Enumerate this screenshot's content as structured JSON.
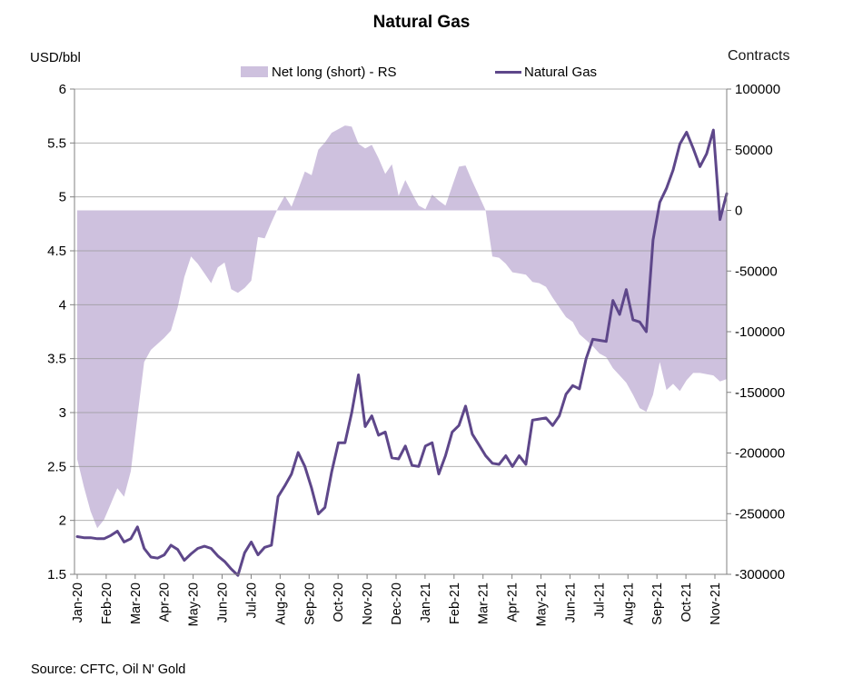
{
  "title": "Natural Gas",
  "left_axis": {
    "label": "USD/bbl",
    "ticks": [
      "6",
      "5.5",
      "5",
      "4.5",
      "4",
      "3.5",
      "3",
      "2.5",
      "2",
      "1.5"
    ]
  },
  "right_axis": {
    "label": "Contracts",
    "ticks": [
      "100000",
      "50000",
      "0",
      "-50000",
      "-100000",
      "-150000",
      "-200000",
      "-250000",
      "-300000"
    ]
  },
  "legend": [
    {
      "label": "Net long (short) - RS",
      "type": "area",
      "color": "#cec1de"
    },
    {
      "label": "Natural Gas",
      "type": "line",
      "color": "#5e478a"
    }
  ],
  "source": "Source: CFTC, Oil N' Gold",
  "colors": {
    "area": "#cec1de",
    "line": "#5e478a",
    "grid": "#999999",
    "axis": "#808080",
    "text": "#000000"
  },
  "chart_data": {
    "type": "line",
    "title": "Natural Gas",
    "xlabel": "",
    "ylabel_left": "USD/bbl",
    "ylabel_right": "Contracts",
    "left_range": [
      1.5,
      6
    ],
    "right_range": [
      -300000,
      100000
    ],
    "grid": "horizontal",
    "legend_position": "top",
    "x_tick_labels": [
      "Jan-20",
      "Feb-20",
      "Mar-20",
      "Apr-20",
      "May-20",
      "Jun-20",
      "Jul-20",
      "Aug-20",
      "Sep-20",
      "Oct-20",
      "Nov-20",
      "Dec-20",
      "Jan-21",
      "Feb-21",
      "Mar-21",
      "Apr-21",
      "May-21",
      "Jun-21",
      "Jul-21",
      "Aug-21",
      "Sep-21",
      "Oct-21",
      "Nov-21"
    ],
    "sampling": "weekly",
    "series": [
      {
        "name": "Net long (short) - RS",
        "style": "area",
        "axis": "right",
        "color": "#cec1de",
        "values": [
          -205000,
          -228000,
          -248000,
          -262000,
          -255000,
          -242000,
          -229000,
          -236000,
          -215000,
          -170000,
          -125000,
          -115000,
          -110000,
          -105000,
          -99000,
          -80000,
          -55000,
          -38000,
          -44000,
          -52000,
          -60000,
          -47000,
          -43000,
          -65000,
          -68000,
          -64000,
          -58000,
          -22000,
          -23000,
          -10000,
          2000,
          12000,
          3000,
          17000,
          32000,
          29000,
          50000,
          56000,
          64000,
          67000,
          70000,
          69000,
          55000,
          51000,
          54000,
          43000,
          30000,
          38000,
          12000,
          25000,
          14000,
          4000,
          1000,
          13000,
          8000,
          4000,
          20000,
          36000,
          37000,
          24000,
          12000,
          0,
          -38000,
          -39000,
          -44000,
          -51000,
          -52000,
          -53000,
          -59000,
          -60000,
          -63000,
          -72000,
          -80000,
          -88000,
          -92000,
          -102000,
          -107000,
          -112000,
          -118000,
          -121000,
          -130000,
          -136000,
          -142000,
          -152000,
          -163000,
          -166000,
          -152000,
          -125000,
          -148000,
          -143000,
          -149000,
          -140000,
          -134000,
          -134000,
          -135000,
          -136000,
          -141000,
          -139000
        ]
      },
      {
        "name": "Natural Gas",
        "style": "line",
        "axis": "left",
        "color": "#5e478a",
        "values": [
          1.85,
          1.84,
          1.84,
          1.83,
          1.83,
          1.86,
          1.9,
          1.8,
          1.83,
          1.94,
          1.74,
          1.66,
          1.65,
          1.68,
          1.77,
          1.73,
          1.63,
          1.69,
          1.74,
          1.76,
          1.74,
          1.67,
          1.62,
          1.55,
          1.49,
          1.7,
          1.8,
          1.68,
          1.75,
          1.77,
          2.22,
          2.32,
          2.43,
          2.63,
          2.5,
          2.3,
          2.06,
          2.12,
          2.45,
          2.72,
          2.72,
          3.0,
          3.35,
          2.87,
          2.97,
          2.79,
          2.82,
          2.58,
          2.57,
          2.69,
          2.51,
          2.5,
          2.69,
          2.72,
          2.43,
          2.6,
          2.82,
          2.88,
          3.06,
          2.8,
          2.7,
          2.6,
          2.53,
          2.52,
          2.6,
          2.5,
          2.6,
          2.52,
          2.93,
          2.94,
          2.95,
          2.88,
          2.97,
          3.17,
          3.25,
          3.22,
          3.5,
          3.68,
          3.67,
          3.66,
          4.04,
          3.91,
          4.14,
          3.86,
          3.84,
          3.75,
          4.6,
          4.95,
          5.08,
          5.25,
          5.49,
          5.6,
          5.45,
          5.28,
          5.4,
          5.62,
          4.79,
          5.03
        ]
      }
    ]
  }
}
